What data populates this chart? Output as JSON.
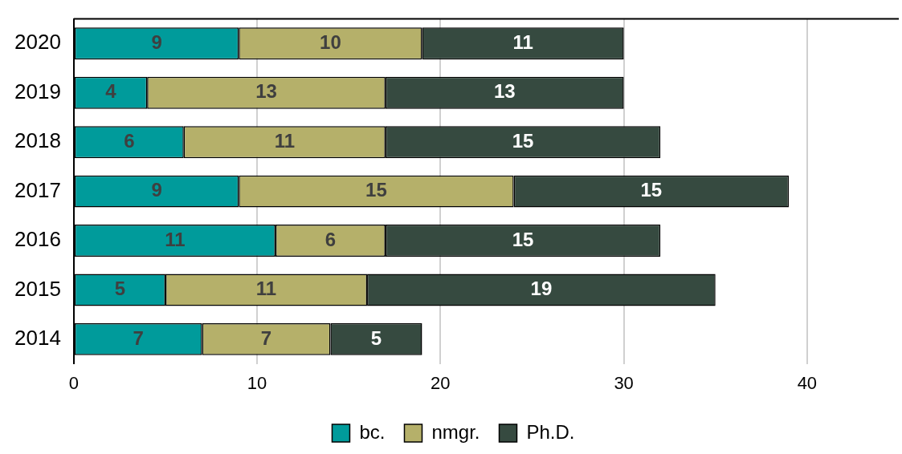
{
  "chart_data": {
    "type": "bar",
    "orientation": "horizontal",
    "stacked": true,
    "data_labels": true,
    "grid": "x",
    "legend": "bottom",
    "categories": [
      "2020",
      "2019",
      "2018",
      "2017",
      "2016",
      "2015",
      "2014"
    ],
    "series": [
      {
        "name": "bc.",
        "color": "#009b9b",
        "values": [
          9,
          4,
          6,
          9,
          11,
          5,
          7
        ]
      },
      {
        "name": "nmgr.",
        "color": "#b5b06a",
        "values": [
          10,
          13,
          11,
          15,
          6,
          11,
          7
        ]
      },
      {
        "name": "Ph.D.",
        "color": "#364a40",
        "values": [
          11,
          13,
          15,
          15,
          15,
          19,
          5
        ]
      }
    ],
    "xlim": [
      0,
      45
    ],
    "xticks": [
      0,
      10,
      20,
      30,
      40
    ]
  }
}
